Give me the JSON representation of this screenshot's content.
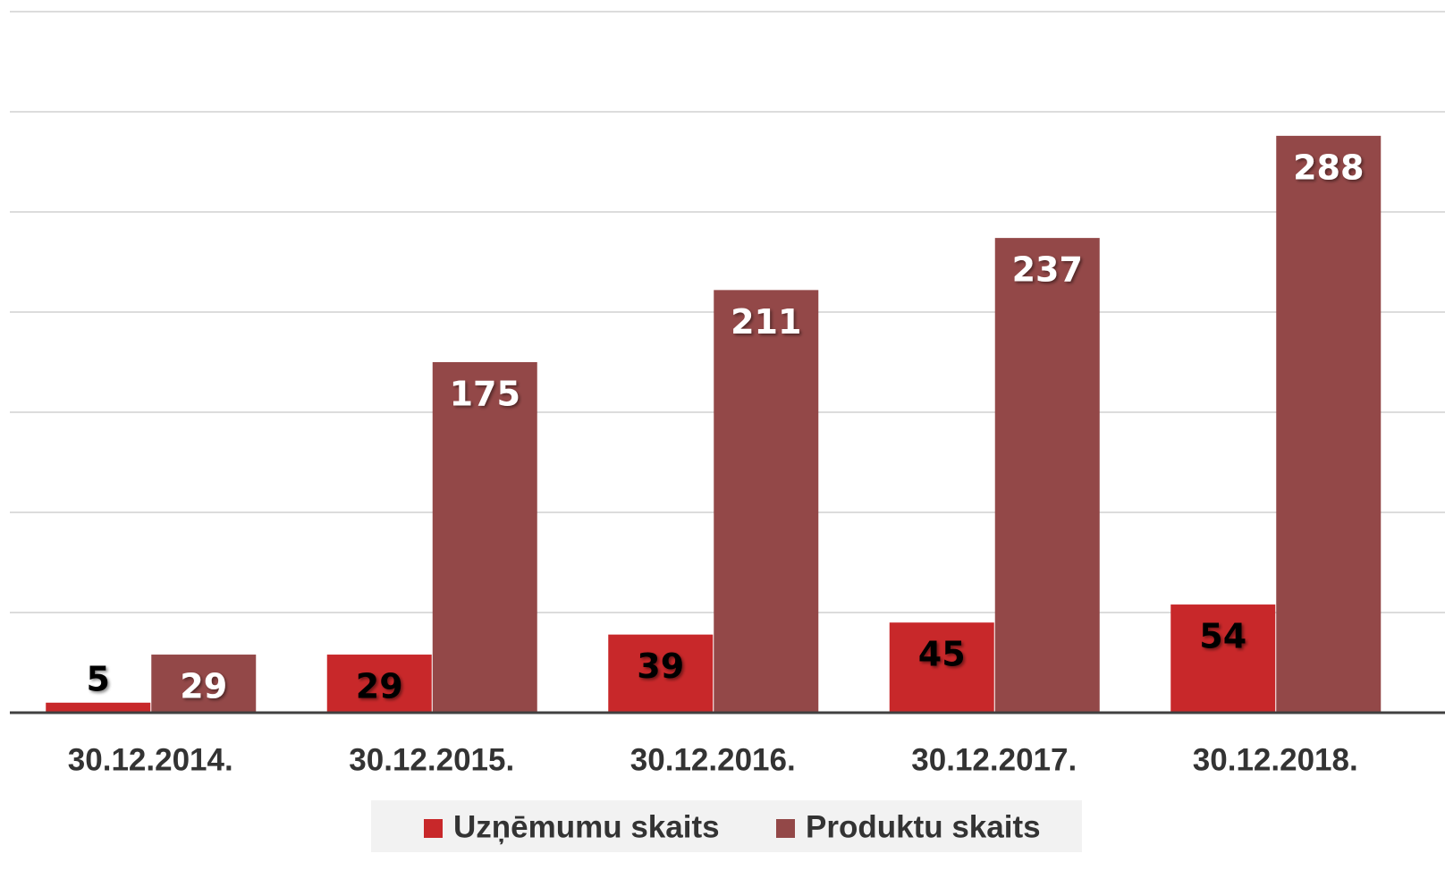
{
  "chart_data": {
    "type": "bar",
    "categories": [
      "30.12.2014.",
      "30.12.2015.",
      "30.12.2016.",
      "30.12.2017.",
      "30.12.2018."
    ],
    "series": [
      {
        "name": "Uzņēmumu skaits",
        "color": "#c8282a",
        "values": [
          5,
          29,
          39,
          45,
          54
        ]
      },
      {
        "name": "Produktu skaits",
        "color": "#934848",
        "values": [
          29,
          175,
          211,
          237,
          288
        ]
      }
    ],
    "ylim": [
      0,
      350
    ],
    "yticks": [
      0,
      50,
      100,
      150,
      200,
      250,
      300,
      350
    ],
    "grid": true,
    "legend": "bottom"
  }
}
